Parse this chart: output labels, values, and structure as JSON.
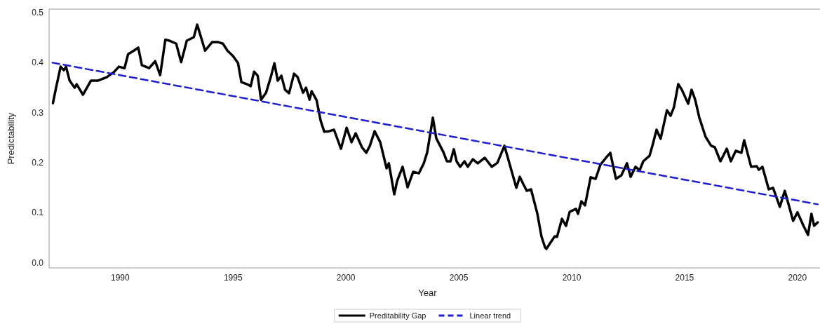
{
  "chart_data": {
    "type": "line",
    "xlabel": "Year",
    "ylabel": "Predictability",
    "xlim": [
      1986.85,
      2021.0
    ],
    "xticks": [
      1990,
      1995,
      2000,
      2005,
      2010,
      2015,
      2020
    ],
    "ylim": [
      -0.01,
      0.507
    ],
    "yticks": [
      {
        "value": 0,
        "label": "0.0"
      },
      0.1,
      0.2,
      0.3,
      0.4,
      0.5
    ],
    "grid": false,
    "legend": "bottom",
    "marker": "none",
    "series": [
      {
        "name": "Preditability Gap",
        "color": "#000000",
        "line_style": "solid",
        "x": [
          1987.02,
          1987.14,
          1987.36,
          1987.5,
          1987.6,
          1987.76,
          1987.98,
          1988.07,
          1988.35,
          1988.7,
          1989.0,
          1989.4,
          1989.72,
          1989.94,
          1990.19,
          1990.35,
          1990.6,
          1990.8,
          1990.96,
          1991.28,
          1991.55,
          1991.77,
          1992.0,
          1992.17,
          1992.48,
          1992.7,
          1992.95,
          1993.26,
          1993.41,
          1993.76,
          1994.07,
          1994.34,
          1994.55,
          1994.75,
          1995.0,
          1995.22,
          1995.37,
          1995.62,
          1995.78,
          1995.93,
          1996.09,
          1996.24,
          1996.46,
          1996.67,
          1996.83,
          1996.98,
          1997.14,
          1997.3,
          1997.48,
          1997.7,
          1997.86,
          1998.1,
          1998.23,
          1998.39,
          1998.48,
          1998.7,
          1998.88,
          1999.04,
          1999.25,
          1999.47,
          1999.78,
          2000.03,
          2000.25,
          2000.43,
          2000.71,
          2000.9,
          2001.06,
          2001.27,
          2001.52,
          2001.8,
          2001.9,
          2002.14,
          2002.27,
          2002.51,
          2002.73,
          2002.98,
          2003.23,
          2003.45,
          2003.6,
          2003.85,
          2004.0,
          2004.32,
          2004.47,
          2004.63,
          2004.78,
          2004.9,
          2005.06,
          2005.25,
          2005.4,
          2005.62,
          2005.84,
          2006.15,
          2006.46,
          2006.71,
          2007.02,
          2007.24,
          2007.55,
          2007.7,
          2007.86,
          2008.01,
          2008.2,
          2008.48,
          2008.66,
          2008.82,
          2008.88,
          2009.04,
          2009.25,
          2009.35,
          2009.57,
          2009.75,
          2009.91,
          2010.19,
          2010.28,
          2010.43,
          2010.59,
          2010.84,
          2011.06,
          2011.27,
          2011.52,
          2011.71,
          2011.96,
          2012.2,
          2012.45,
          2012.61,
          2012.83,
          2013.01,
          2013.17,
          2013.45,
          2013.6,
          2013.76,
          2013.94,
          2014.22,
          2014.38,
          2014.53,
          2014.72,
          2014.88,
          2015.16,
          2015.31,
          2015.47,
          2015.65,
          2015.93,
          2016.18,
          2016.34,
          2016.59,
          2016.87,
          2017.05,
          2017.27,
          2017.52,
          2017.64,
          2017.95,
          2018.2,
          2018.29,
          2018.45,
          2018.73,
          2018.92,
          2019.22,
          2019.44,
          2019.81,
          2020.0,
          2020.28,
          2020.47,
          2020.62,
          2020.74,
          2020.9
        ],
        "values": [
          0.319,
          0.346,
          0.392,
          0.385,
          0.392,
          0.364,
          0.35,
          0.357,
          0.336,
          0.364,
          0.364,
          0.371,
          0.381,
          0.392,
          0.389,
          0.417,
          0.424,
          0.43,
          0.395,
          0.389,
          0.403,
          0.375,
          0.446,
          0.444,
          0.438,
          0.401,
          0.444,
          0.451,
          0.476,
          0.424,
          0.441,
          0.441,
          0.438,
          0.424,
          0.413,
          0.399,
          0.361,
          0.357,
          0.353,
          0.382,
          0.374,
          0.326,
          0.34,
          0.371,
          0.399,
          0.364,
          0.374,
          0.346,
          0.339,
          0.378,
          0.371,
          0.34,
          0.35,
          0.326,
          0.343,
          0.325,
          0.284,
          0.262,
          0.263,
          0.266,
          0.228,
          0.27,
          0.241,
          0.259,
          0.231,
          0.22,
          0.234,
          0.263,
          0.241,
          0.189,
          0.199,
          0.137,
          0.164,
          0.192,
          0.151,
          0.182,
          0.179,
          0.199,
          0.221,
          0.29,
          0.249,
          0.221,
          0.203,
          0.203,
          0.227,
          0.203,
          0.192,
          0.203,
          0.192,
          0.207,
          0.199,
          0.21,
          0.192,
          0.2,
          0.234,
          0.199,
          0.15,
          0.172,
          0.157,
          0.144,
          0.147,
          0.098,
          0.053,
          0.031,
          0.028,
          0.039,
          0.053,
          0.052,
          0.088,
          0.074,
          0.102,
          0.108,
          0.098,
          0.123,
          0.115,
          0.171,
          0.168,
          0.196,
          0.21,
          0.22,
          0.168,
          0.175,
          0.199,
          0.172,
          0.192,
          0.185,
          0.203,
          0.214,
          0.238,
          0.266,
          0.248,
          0.305,
          0.294,
          0.311,
          0.357,
          0.346,
          0.318,
          0.346,
          0.326,
          0.291,
          0.252,
          0.234,
          0.231,
          0.203,
          0.228,
          0.203,
          0.224,
          0.22,
          0.245,
          0.192,
          0.193,
          0.186,
          0.192,
          0.147,
          0.15,
          0.112,
          0.144,
          0.084,
          0.101,
          0.073,
          0.056,
          0.098,
          0.074,
          0.081
        ]
      },
      {
        "name": "Linear trend",
        "color": "#1f1fd0",
        "line_style": "dashed",
        "x": [
          1987.0,
          2020.9
        ],
        "values": [
          0.4,
          0.117
        ]
      }
    ]
  }
}
